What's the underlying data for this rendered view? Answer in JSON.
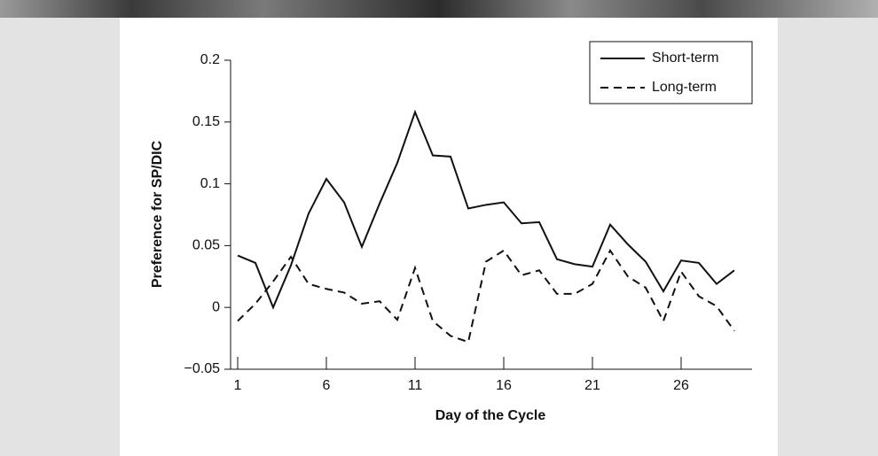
{
  "chart_data": {
    "type": "line",
    "x_label": "Day of the Cycle",
    "y_label": "Preference for SP/DIC",
    "x": [
      1,
      2,
      3,
      4,
      5,
      6,
      7,
      8,
      9,
      10,
      11,
      12,
      13,
      14,
      15,
      16,
      17,
      18,
      19,
      20,
      21,
      22,
      23,
      24,
      25,
      26,
      27,
      28,
      29
    ],
    "series": [
      {
        "name": "Short-term",
        "color": "#111111",
        "dash": "solid",
        "values": [
          0.042,
          0.036,
          0,
          0.034,
          0.076,
          0.104,
          0.085,
          0.049,
          0.084,
          0.117,
          0.158,
          0.123,
          0.122,
          0.08,
          0.083,
          0.085,
          0.068,
          0.069,
          0.039,
          0.035,
          0.033,
          0.067,
          0.051,
          0.037,
          0.013,
          0.038,
          0.036,
          0.019,
          0.03
        ]
      },
      {
        "name": "Long-term",
        "color": "#111111",
        "dash": "dashed",
        "values": [
          -0.011,
          0.003,
          0.021,
          0.041,
          0.019,
          0.015,
          0.012,
          0.003,
          0.005,
          -0.01,
          0.032,
          -0.011,
          -0.023,
          -0.028,
          0.037,
          0.046,
          0.026,
          0.03,
          0.011,
          0.011,
          0.019,
          0.046,
          0.025,
          0.016,
          -0.011,
          0.029,
          0.009,
          0.001,
          -0.019
        ]
      }
    ],
    "xlim": [
      0.6,
      30
    ],
    "xticks": [
      1,
      6,
      11,
      16,
      21,
      26
    ],
    "ylim": [
      -0.05,
      0.2
    ],
    "yticks": [
      {
        "value": -0.05,
        "label": "−0.05"
      },
      0,
      0.05,
      0.1,
      0.15,
      0.2
    ],
    "legend": "top-right"
  }
}
